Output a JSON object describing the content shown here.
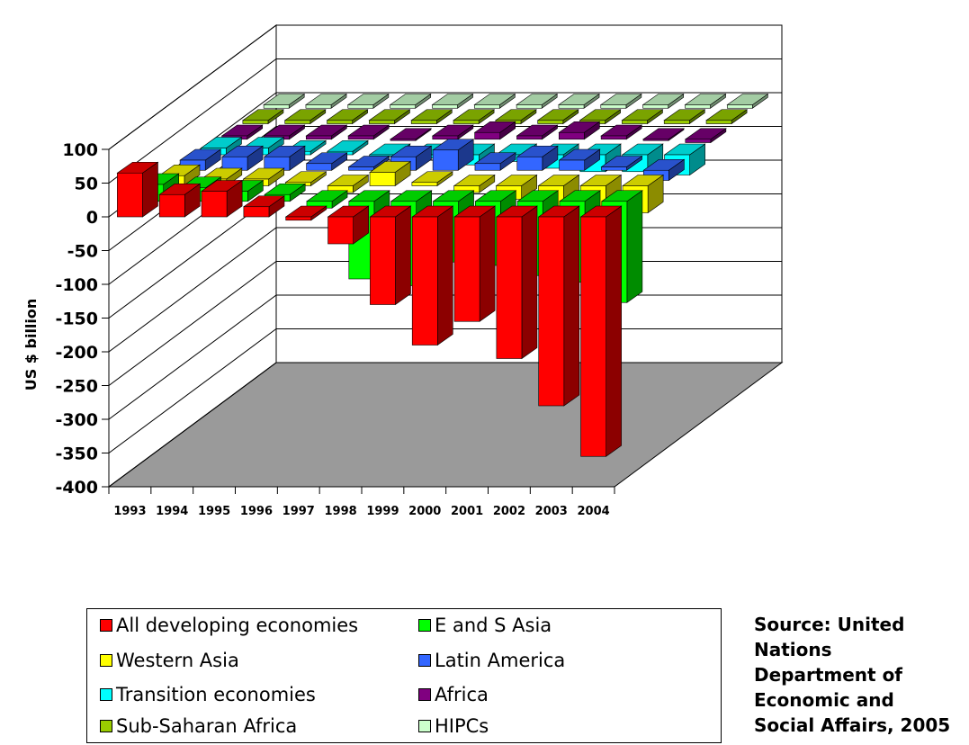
{
  "chart_data": {
    "type": "bar",
    "variant": "3d-depth-column",
    "ylabel": "US $ billion",
    "ylim": [
      -400,
      100
    ],
    "yticks": [
      100,
      50,
      0,
      -50,
      -100,
      -150,
      -200,
      -250,
      -300,
      -350,
      -400
    ],
    "grid": true,
    "categories": [
      "1993",
      "1994",
      "1995",
      "1996",
      "1997",
      "1998",
      "1999",
      "2000",
      "2001",
      "2002",
      "2003",
      "2004"
    ],
    "series": [
      {
        "name": "All developing economies",
        "color": "#ff0000",
        "values": [
          65,
          33,
          38,
          15,
          -5,
          -40,
          -130,
          -190,
          -155,
          -210,
          -280,
          -355
        ]
      },
      {
        "name": "E and S Asia",
        "color": "#00ff00",
        "values": [
          25,
          20,
          15,
          10,
          -10,
          -115,
          -125,
          -90,
          -95,
          -110,
          -120,
          -150
        ]
      },
      {
        "name": "Western Asia",
        "color": "#ffff00",
        "values": [
          15,
          10,
          10,
          5,
          -10,
          20,
          5,
          -10,
          -20,
          -30,
          -35,
          -40
        ]
      },
      {
        "name": "Latin America",
        "color": "#3366ff",
        "values": [
          15,
          20,
          20,
          10,
          5,
          20,
          30,
          10,
          20,
          15,
          5,
          -15
        ]
      },
      {
        "name": "Transition economies",
        "color": "#00ffff",
        "values": [
          10,
          10,
          5,
          5,
          0,
          -5,
          -15,
          -10,
          -20,
          -25,
          -25,
          -30
        ]
      },
      {
        "name": "Africa",
        "color": "#800080",
        "values": [
          5,
          5,
          5,
          5,
          0,
          5,
          10,
          5,
          10,
          5,
          0,
          -5
        ]
      },
      {
        "name": "Sub-Saharan Africa",
        "color": "#99cc00",
        "values": [
          5,
          5,
          5,
          5,
          5,
          5,
          5,
          5,
          5,
          5,
          5,
          5
        ]
      },
      {
        "name": "HIPCs",
        "color": "#ccffcc",
        "values": [
          5,
          5,
          5,
          5,
          5,
          5,
          5,
          5,
          5,
          5,
          5,
          5
        ]
      }
    ],
    "legend_position": "bottom"
  },
  "source": {
    "lines": [
      "Source: United",
      "Nations",
      "Department of",
      "Economic and",
      "Social Affairs, 2005"
    ]
  }
}
